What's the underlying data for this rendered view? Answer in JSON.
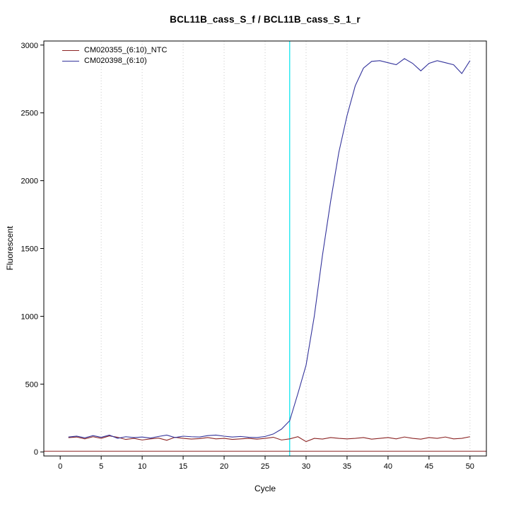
{
  "chart_data": {
    "type": "line",
    "title": "BCL11B_cass_S_f / BCL11B_cass_S_1_r",
    "xlabel": "Cycle",
    "ylabel": "Fluorescent",
    "x_start": 1,
    "x_domain": [
      -2,
      52
    ],
    "y_domain": [
      -30,
      3030
    ],
    "xticks": [
      0,
      5,
      10,
      15,
      20,
      25,
      30,
      35,
      40,
      45,
      50
    ],
    "yticks": [
      0,
      500,
      1000,
      1500,
      2000,
      2500,
      3000
    ],
    "grid_x": [
      5,
      10,
      15,
      20,
      25,
      30,
      35,
      40,
      45,
      50
    ],
    "grid_on": true,
    "legend_position": "top-left",
    "ct_line": {
      "x": 28
    },
    "threshold_line": {
      "y": 5
    },
    "colors": {
      "grid": "#c8c8c8",
      "ct": "#00e5ee",
      "threshold": "#8b2323",
      "axis": "#000000"
    },
    "series": [
      {
        "name": "CM020355_(6:10)_NTC",
        "color": "#8b2323",
        "values": [
          105,
          110,
          96,
          112,
          100,
          118,
          108,
          92,
          100,
          88,
          96,
          102,
          86,
          108,
          100,
          95,
          98,
          106,
          96,
          100,
          92,
          96,
          100,
          94,
          100,
          108,
          88,
          96,
          112,
          76,
          100,
          95,
          106,
          100,
          96,
          100,
          106,
          94,
          100,
          106,
          96,
          110,
          100,
          94,
          106,
          100,
          110,
          96,
          100,
          112
        ]
      },
      {
        "name": "CM020398_(6:10)",
        "color": "#33339b",
        "values": [
          110,
          116,
          104,
          120,
          108,
          124,
          100,
          112,
          106,
          110,
          102,
          114,
          124,
          106,
          116,
          112,
          110,
          120,
          124,
          116,
          110,
          114,
          108,
          106,
          114,
          132,
          168,
          230,
          430,
          640,
          1000,
          1450,
          1850,
          2210,
          2480,
          2700,
          2830,
          2880,
          2885,
          2870,
          2855,
          2900,
          2865,
          2810,
          2865,
          2885,
          2870,
          2855,
          2790,
          2885
        ]
      }
    ]
  }
}
